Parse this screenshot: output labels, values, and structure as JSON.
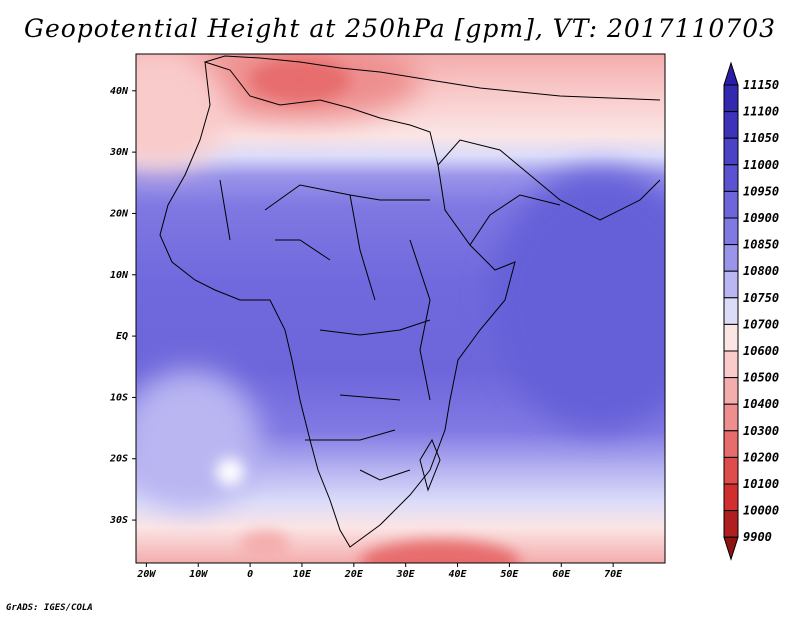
{
  "title": "Geopotential Height at 250hPa [gpm], VT: 2017110703",
  "credit": "GrADS: IGES/COLA",
  "map": {
    "lon_range": [
      -22,
      80
    ],
    "lat_range": [
      -37,
      46
    ],
    "x_ticks": [
      "20W",
      "10W",
      "0",
      "10E",
      "20E",
      "30E",
      "40E",
      "50E",
      "60E",
      "70E"
    ],
    "x_tick_values": [
      -20,
      -10,
      0,
      10,
      20,
      30,
      40,
      50,
      60,
      70
    ],
    "y_ticks": [
      "40N",
      "30N",
      "20N",
      "10N",
      "EQ",
      "10S",
      "20S",
      "30S"
    ],
    "y_tick_values": [
      40,
      30,
      20,
      10,
      0,
      -10,
      -20,
      -30
    ]
  },
  "colorbar": {
    "levels": [
      "11150",
      "11100",
      "11050",
      "11000",
      "10950",
      "10900",
      "10850",
      "10800",
      "10750",
      "10700",
      "10600",
      "10500",
      "10400",
      "10300",
      "10200",
      "10100",
      "10000",
      "9900"
    ],
    "colors": [
      "#2a1ea8",
      "#3328b0",
      "#3d33bb",
      "#4a43c6",
      "#5a52d2",
      "#6d66db",
      "#8179e3",
      "#9a94ea",
      "#b9b6f2",
      "#dcdcf9",
      "#fbe5e5",
      "#f9cbcb",
      "#f4adad",
      "#ee8e8e",
      "#e76d6d",
      "#df4c4c",
      "#d12f2f",
      "#b01f1f",
      "#8f1313"
    ]
  }
}
